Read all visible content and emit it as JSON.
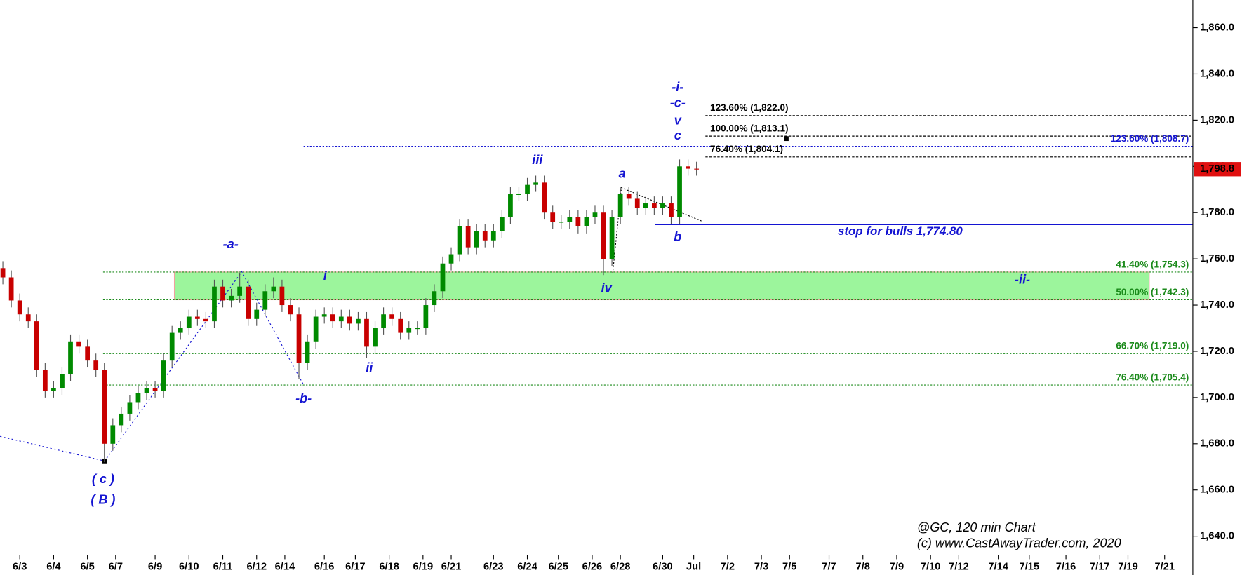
{
  "chart_data": {
    "type": "candlestick",
    "xticks": [
      {
        "value": 7,
        "label": "6/3"
      },
      {
        "value": 19,
        "label": "6/4"
      },
      {
        "value": 31,
        "label": "6/5"
      },
      {
        "value": 41,
        "label": "6/7"
      },
      {
        "value": 55,
        "label": "6/9"
      },
      {
        "value": 67,
        "label": "6/10"
      },
      {
        "value": 79,
        "label": "6/11"
      },
      {
        "value": 91,
        "label": "6/12"
      },
      {
        "value": 101,
        "label": "6/14"
      },
      {
        "value": 115,
        "label": "6/16"
      },
      {
        "value": 126,
        "label": "6/17"
      },
      {
        "value": 138,
        "label": "6/18"
      },
      {
        "value": 150,
        "label": "6/19"
      },
      {
        "value": 160,
        "label": "6/21"
      },
      {
        "value": 175,
        "label": "6/23"
      },
      {
        "value": 187,
        "label": "6/24"
      },
      {
        "value": 198,
        "label": "6/25"
      },
      {
        "value": 210,
        "label": "6/26"
      },
      {
        "value": 220,
        "label": "6/28"
      },
      {
        "value": 235,
        "label": "6/30"
      },
      {
        "value": 246,
        "label": "Jul"
      },
      {
        "value": 258,
        "label": "7/2"
      },
      {
        "value": 270,
        "label": "7/3"
      },
      {
        "value": 280,
        "label": "7/5"
      },
      {
        "value": 294,
        "label": "7/7"
      },
      {
        "value": 306,
        "label": "7/8"
      },
      {
        "value": 318,
        "label": "7/9"
      },
      {
        "value": 330,
        "label": "7/10"
      },
      {
        "value": 340,
        "label": "7/12"
      },
      {
        "value": 354,
        "label": "7/14"
      },
      {
        "value": 365,
        "label": "7/15"
      },
      {
        "value": 378,
        "label": "7/16"
      },
      {
        "value": 390,
        "label": "7/17"
      },
      {
        "value": 400,
        "label": "7/19"
      },
      {
        "value": 413,
        "label": "7/21"
      }
    ],
    "xlim": [
      0,
      423
    ],
    "ylim": [
      1623.2,
      1872
    ],
    "yticks": [
      {
        "value": 1640,
        "label": "1,640.0"
      },
      {
        "value": 1660,
        "label": "1,660.0"
      },
      {
        "value": 1680,
        "label": "1,680.0"
      },
      {
        "value": 1700,
        "label": "1,700.0"
      },
      {
        "value": 1720,
        "label": "1,720.0"
      },
      {
        "value": 1740,
        "label": "1,740.0"
      },
      {
        "value": 1760,
        "label": "1,760.0"
      },
      {
        "value": 1780,
        "label": "1,780.0"
      },
      {
        "value": 1800,
        "label": "1,800.0"
      },
      {
        "value": 1820,
        "label": "1,820.0"
      },
      {
        "value": 1840,
        "label": "1,840.0"
      },
      {
        "value": 1860,
        "label": "1,860.0"
      }
    ],
    "up_color": "#008a00",
    "down_color": "#c80000",
    "x": [
      1,
      4,
      7,
      10,
      13,
      16,
      19,
      22,
      25,
      28,
      31,
      34,
      37,
      40,
      43,
      46,
      49,
      52,
      55,
      58,
      61,
      64,
      67,
      70,
      73,
      76,
      79,
      82,
      85,
      88,
      91,
      94,
      97,
      100,
      103,
      106,
      109,
      112,
      115,
      118,
      121,
      124,
      127,
      130,
      133,
      136,
      139,
      142,
      145,
      148,
      151,
      154,
      157,
      160,
      163,
      166,
      169,
      172,
      175,
      178,
      181,
      184,
      187,
      190,
      193,
      196,
      199,
      202,
      205,
      208,
      211,
      214,
      217,
      220,
      223,
      226,
      229,
      232,
      235,
      238,
      241,
      244,
      247
    ],
    "open": [
      1756,
      1752,
      1742,
      1736,
      1733,
      1712,
      1703,
      1704,
      1710,
      1724,
      1722,
      1716,
      1712,
      1680,
      1688,
      1693,
      1698,
      1702,
      1704,
      1703,
      1716,
      1728,
      1730,
      1735,
      1734,
      1733,
      1748,
      1742,
      1744,
      1748,
      1734,
      1738,
      1746,
      1748,
      1740,
      1736,
      1715,
      1724,
      1735,
      1736,
      1733,
      1735,
      1732,
      1734,
      1722,
      1730,
      1736,
      1734,
      1728,
      1730,
      1730,
      1740,
      1746,
      1758,
      1762,
      1774,
      1765,
      1772,
      1768,
      1772,
      1778,
      1788,
      1788,
      1792,
      1793,
      1780,
      1776,
      1776,
      1778,
      1774,
      1778,
      1780,
      1760,
      1778,
      1788,
      1786,
      1782,
      1784,
      1782,
      1784,
      1778,
      1800,
      1799
    ],
    "high": [
      1759,
      1755,
      1745,
      1739,
      1736,
      1715,
      1707,
      1713,
      1727,
      1727,
      1725,
      1719,
      1715,
      1691,
      1696,
      1701,
      1705,
      1707,
      1707,
      1719,
      1731,
      1733,
      1738,
      1738,
      1737,
      1751,
      1751,
      1747,
      1754,
      1751,
      1741,
      1749,
      1752,
      1751,
      1743,
      1739,
      1727,
      1738,
      1739,
      1739,
      1738,
      1738,
      1737,
      1737,
      1733,
      1739,
      1739,
      1737,
      1733,
      1733,
      1743,
      1749,
      1761,
      1765,
      1777,
      1777,
      1775,
      1775,
      1775,
      1781,
      1791,
      1791,
      1795,
      1796,
      1796,
      1783,
      1779,
      1781,
      1781,
      1781,
      1783,
      1783,
      1781,
      1791,
      1791,
      1789,
      1787,
      1787,
      1787,
      1787,
      1803,
      1803,
      1802
    ],
    "low": [
      1749,
      1739,
      1733,
      1730,
      1709,
      1700,
      1700,
      1701,
      1707,
      1719,
      1713,
      1709,
      1672,
      1677,
      1685,
      1690,
      1695,
      1699,
      1700,
      1700,
      1713,
      1725,
      1727,
      1731,
      1730,
      1730,
      1739,
      1739,
      1741,
      1731,
      1731,
      1735,
      1743,
      1737,
      1733,
      1708,
      1712,
      1721,
      1732,
      1730,
      1730,
      1729,
      1729,
      1717,
      1719,
      1727,
      1731,
      1725,
      1725,
      1727,
      1727,
      1737,
      1743,
      1755,
      1759,
      1762,
      1762,
      1765,
      1765,
      1769,
      1775,
      1785,
      1785,
      1789,
      1777,
      1773,
      1773,
      1773,
      1771,
      1771,
      1775,
      1753,
      1757,
      1775,
      1783,
      1779,
      1779,
      1779,
      1779,
      1775,
      1775,
      1796,
      1796
    ],
    "close": [
      1752,
      1742,
      1736,
      1733,
      1712,
      1703,
      1704,
      1710,
      1724,
      1722,
      1716,
      1712,
      1680,
      1688,
      1693,
      1698,
      1702,
      1704,
      1703,
      1716,
      1728,
      1730,
      1735,
      1734,
      1733,
      1748,
      1742,
      1744,
      1748,
      1734,
      1738,
      1746,
      1748,
      1740,
      1736,
      1715,
      1724,
      1735,
      1736,
      1733,
      1735,
      1732,
      1734,
      1722,
      1730,
      1736,
      1734,
      1728,
      1730,
      1730,
      1740,
      1746,
      1758,
      1762,
      1774,
      1765,
      1772,
      1768,
      1772,
      1778,
      1788,
      1788,
      1792,
      1793,
      1780,
      1776,
      1776,
      1778,
      1774,
      1778,
      1780,
      1760,
      1778,
      1788,
      1786,
      1782,
      1784,
      1782,
      1784,
      1778,
      1800,
      1799,
      1798.8
    ],
    "last_price": {
      "value": 1798.8,
      "label": "1,798.8"
    },
    "levels": [
      {
        "label": "123.60% (1,822.0)",
        "value": 1822.0,
        "color": "#000000"
      },
      {
        "label": "100.00% (1,813.1)",
        "value": 1813.1,
        "color": "#000000"
      },
      {
        "label": "76.40% (1,804.1)",
        "value": 1804.1,
        "color": "#000000"
      },
      {
        "label": "123.60% (1,808.7)",
        "value": 1808.7,
        "color": "#1414d2"
      },
      {
        "label": "41.40% (1,754.3)",
        "value": 1754.3,
        "color": "#1a8a1a"
      },
      {
        "label": "50.00% (1,742.3)",
        "value": 1742.3,
        "color": "#1a8a1a"
      },
      {
        "label": "66.70% (1,719.0)",
        "value": 1719.0,
        "color": "#1a8a1a"
      },
      {
        "label": "76.40% (1,705.4)",
        "value": 1705.4,
        "color": "#1a8a1a"
      }
    ],
    "stop": {
      "label": "stop for bulls 1,774.80",
      "value": 1774.8,
      "color": "#1414d2"
    },
    "annotations": [
      "-i-",
      "-c-",
      "v",
      "c",
      "iii",
      "a",
      "b",
      "-a-",
      "i",
      "iv",
      "ii",
      "-b-",
      "( c )",
      "( B )",
      "-ii-"
    ],
    "watermark": [
      "@GC, 120 min Chart",
      "(c) www.CastAwayTrader.com, 2020"
    ]
  }
}
